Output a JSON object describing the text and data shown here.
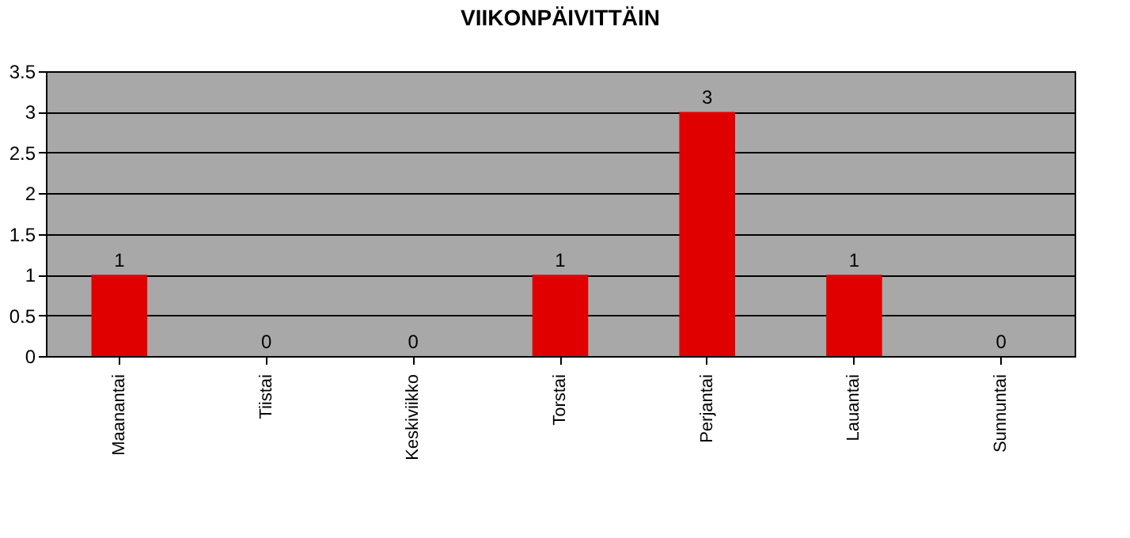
{
  "chart_data": {
    "type": "bar",
    "title": "VIIKONPÄIVITTÄIN",
    "categories": [
      "Maanantai",
      "Tiistai",
      "Keskiviikko",
      "Torstai",
      "Perjantai",
      "Lauantai",
      "Sunnuntai"
    ],
    "values": [
      1,
      0,
      0,
      1,
      3,
      1,
      0
    ],
    "color": "#e00000",
    "ylim": [
      0,
      3.5
    ],
    "yticks": [
      0,
      0.5,
      1,
      1.5,
      2,
      2.5,
      3,
      3.5
    ],
    "grid": "y",
    "data_labels": true
  }
}
